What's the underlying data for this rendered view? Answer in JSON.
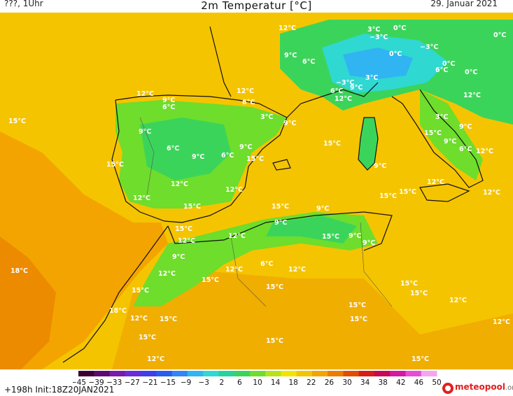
{
  "header": {
    "left": "???, 1Uhr",
    "title": "2m Temperatur [°C]",
    "date": "29. Januar 2021"
  },
  "footer": {
    "run_info": "+198h  Init:18Z20JAN2021",
    "brand": "meteopool",
    "brand_tld": ".org"
  },
  "colorbar": {
    "ticks": [
      "−45",
      "−39",
      "−33",
      "−27",
      "−21",
      "−15",
      "−9",
      "−3",
      "2",
      "6",
      "10",
      "14",
      "18",
      "22",
      "26",
      "30",
      "34",
      "38",
      "42",
      "46",
      "50"
    ],
    "colors": [
      "#3a0034",
      "#5c0a6e",
      "#7a1aa8",
      "#6a2cd8",
      "#3f3ee8",
      "#2a5af2",
      "#2f86f4",
      "#31b4f2",
      "#2fd8d0",
      "#27d39a",
      "#3bd45a",
      "#6edd2c",
      "#b7e21a",
      "#f3e400",
      "#f5c400",
      "#f3a400",
      "#ec7c00",
      "#e44c00",
      "#d81c16",
      "#c80850",
      "#d418a0",
      "#e84cd4",
      "#f7a4f0"
    ],
    "colors_note": ""
  },
  "temperature_labels": [
    {
      "t": "12°C"
    },
    {
      "t": "9°C"
    },
    {
      "t": "6°C"
    },
    {
      "t": "3°C"
    },
    {
      "t": "−3°C"
    },
    {
      "t": "0°C"
    },
    {
      "t": "0°C"
    },
    {
      "t": "−3°C"
    },
    {
      "t": "0°C"
    },
    {
      "t": "0°C"
    },
    {
      "t": "6°C"
    },
    {
      "t": "0°C"
    },
    {
      "t": "−3°C"
    },
    {
      "t": "3°C"
    },
    {
      "t": "6°C"
    },
    {
      "t": "9°C"
    },
    {
      "t": "12°C"
    },
    {
      "t": "12°C"
    },
    {
      "t": "12°C"
    },
    {
      "t": "9°C"
    },
    {
      "t": "6°C"
    },
    {
      "t": "12°C"
    },
    {
      "t": "6°C"
    },
    {
      "t": "3°C"
    },
    {
      "t": "9°C"
    },
    {
      "t": "15°C"
    },
    {
      "t": "9°C"
    },
    {
      "t": "6°C"
    },
    {
      "t": "9°C"
    },
    {
      "t": "6°C"
    },
    {
      "t": "9°C"
    },
    {
      "t": "15°C"
    },
    {
      "t": "15°C"
    },
    {
      "t": "15°C"
    },
    {
      "t": "9°C"
    },
    {
      "t": "12°C"
    },
    {
      "t": "12°C"
    },
    {
      "t": "15°C"
    },
    {
      "t": "3°C"
    },
    {
      "t": "9°C"
    },
    {
      "t": "12°C"
    },
    {
      "t": "9°C"
    },
    {
      "t": "6°C"
    },
    {
      "t": "12°C"
    },
    {
      "t": "12°C"
    },
    {
      "t": "15°C"
    },
    {
      "t": "15°C"
    },
    {
      "t": "15°C"
    },
    {
      "t": "15°C"
    },
    {
      "t": "12°C"
    },
    {
      "t": "9°C"
    },
    {
      "t": "15°C"
    },
    {
      "t": "9°C"
    },
    {
      "t": "12°C"
    },
    {
      "t": "15°C"
    },
    {
      "t": "12°C"
    },
    {
      "t": "9°C"
    },
    {
      "t": "9°C"
    },
    {
      "t": "12°C"
    },
    {
      "t": "9°C"
    },
    {
      "t": "6°C"
    },
    {
      "t": "12°C"
    },
    {
      "t": "18°C"
    },
    {
      "t": "12°C"
    },
    {
      "t": "15°C"
    },
    {
      "t": "15°C"
    },
    {
      "t": "15°C"
    },
    {
      "t": "15°C"
    },
    {
      "t": "15°C"
    },
    {
      "t": "12°C"
    },
    {
      "t": "15°C"
    },
    {
      "t": "18°C"
    },
    {
      "t": "12°C"
    },
    {
      "t": "15°C"
    },
    {
      "t": "15°C"
    },
    {
      "t": "12°C"
    },
    {
      "t": "15°C"
    },
    {
      "t": "15°C"
    },
    {
      "t": "12°C"
    },
    {
      "t": "15°C"
    }
  ]
}
